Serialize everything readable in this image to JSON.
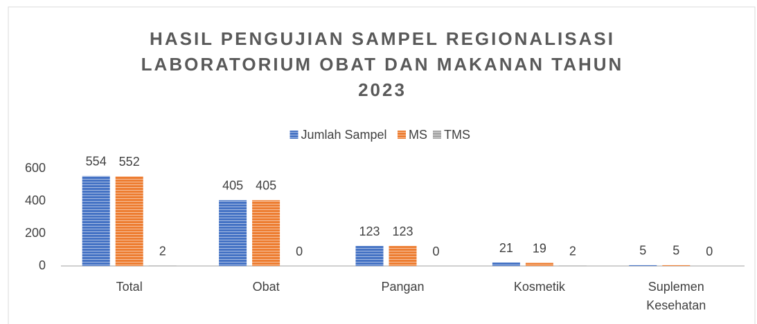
{
  "chart_data": {
    "type": "bar",
    "title": "HASIL PENGUJIAN SAMPEL REGIONALISASI LABORATORIUM OBAT DAN MAKANAN TAHUN 2023",
    "categories": [
      "Total",
      "Obat",
      "Pangan",
      "Kosmetik",
      "Suplemen Kesehatan"
    ],
    "series": [
      {
        "name": "Jumlah Sampel",
        "color": "#4472c4",
        "values": [
          554,
          405,
          123,
          21,
          5
        ]
      },
      {
        "name": "MS",
        "color": "#ed7d31",
        "values": [
          552,
          405,
          123,
          19,
          5
        ]
      },
      {
        "name": "TMS",
        "color": "#a5a5a5",
        "values": [
          2,
          0,
          0,
          2,
          0
        ]
      }
    ],
    "ylim": [
      0,
      600
    ],
    "yticks": [
      0,
      200,
      400,
      600
    ],
    "grid": false,
    "legend": "top"
  }
}
